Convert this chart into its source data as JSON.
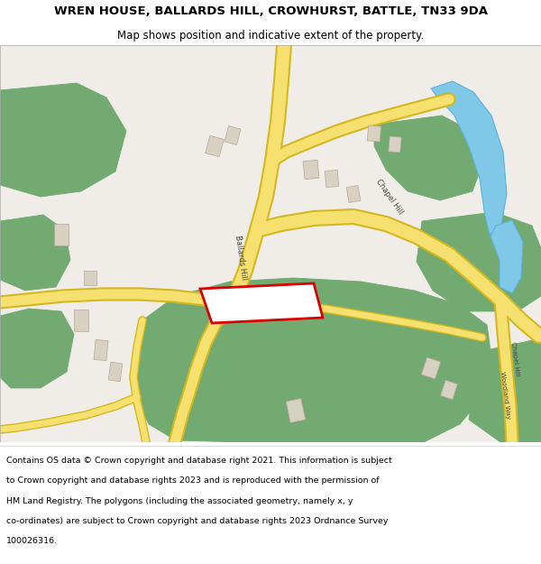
{
  "title_line1": "WREN HOUSE, BALLARDS HILL, CROWHURST, BATTLE, TN33 9DA",
  "title_line2": "Map shows position and indicative extent of the property.",
  "footer_lines": [
    "Contains OS data © Crown copyright and database right 2021. This information is subject",
    "to Crown copyright and database rights 2023 and is reproduced with the permission of",
    "HM Land Registry. The polygons (including the associated geometry, namely x, y",
    "co-ordinates) are subject to Crown copyright and database rights 2023 Ordnance Survey",
    "100026316."
  ],
  "map_bg": "#f0ede8",
  "road_fill": "#f5e070",
  "road_edge": "#d4b820",
  "green": "#72aa72",
  "water": "#80c8e8",
  "bld_fill": "#d8d0c0",
  "bld_edge": "#b0a898",
  "plot_col": "#dd0000",
  "title_fs": 9.5,
  "sub_fs": 8.5,
  "foot_fs": 6.8
}
